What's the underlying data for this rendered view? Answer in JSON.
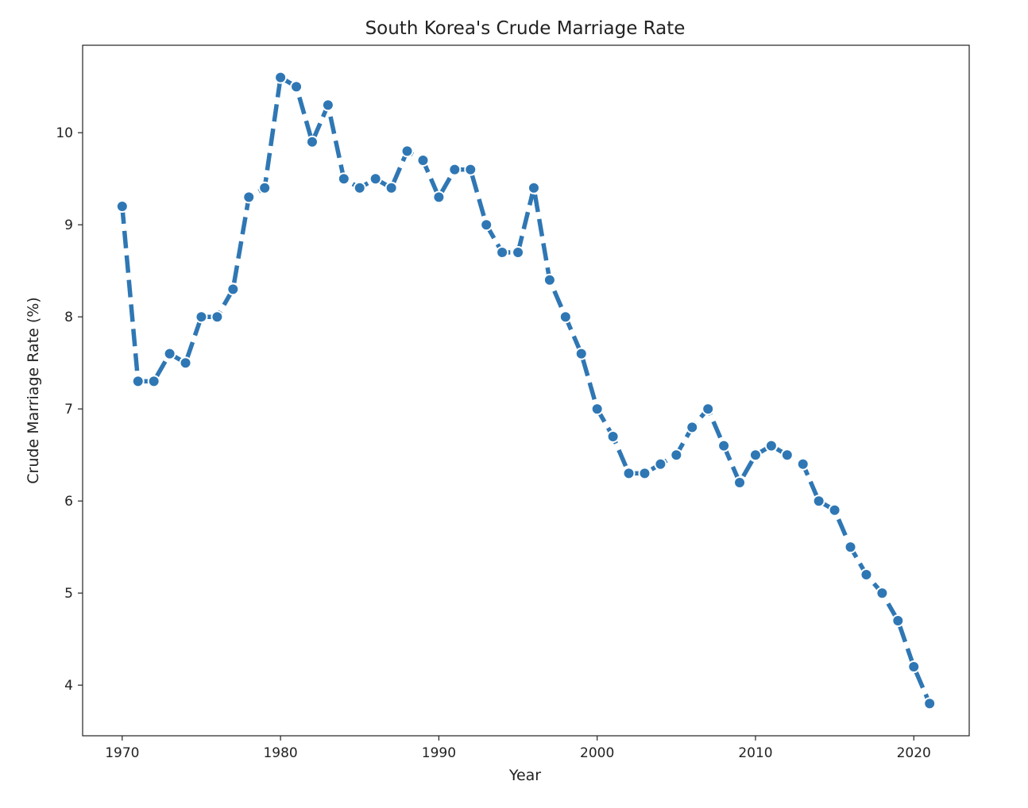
{
  "chart_data": {
    "type": "line",
    "title": "South Korea's Crude Marriage Rate",
    "xlabel": "Year",
    "ylabel": "Crude Marriage Rate (%)",
    "xlim": [
      1967.5,
      2023.5
    ],
    "ylim": [
      3.45,
      10.95
    ],
    "xticks": [
      1970,
      1980,
      1990,
      2000,
      2010,
      2020
    ],
    "yticks": [
      4,
      5,
      6,
      7,
      8,
      9,
      10
    ],
    "grid": false,
    "color": "#2f77b4",
    "series": [
      {
        "x": [
          1970,
          1971,
          1972,
          1973,
          1974,
          1975,
          1976,
          1977,
          1978,
          1979,
          1980,
          1981,
          1982,
          1983,
          1984,
          1985,
          1986,
          1987,
          1988,
          1989,
          1990,
          1991,
          1992,
          1993,
          1994,
          1995,
          1996,
          1997,
          1998,
          1999,
          2000,
          2001,
          2002,
          2003,
          2004,
          2005,
          2006,
          2007,
          2008,
          2009,
          2010,
          2011,
          2012,
          2013,
          2014,
          2015,
          2016,
          2017,
          2018,
          2019,
          2020,
          2021
        ],
        "y": [
          9.2,
          7.3,
          7.3,
          7.6,
          7.5,
          8.0,
          8.0,
          8.3,
          9.3,
          9.4,
          10.6,
          10.5,
          9.9,
          10.3,
          9.5,
          9.4,
          9.5,
          9.4,
          9.8,
          9.7,
          9.3,
          9.6,
          9.6,
          9.0,
          8.7,
          8.7,
          9.4,
          8.4,
          8.0,
          7.6,
          7.0,
          6.7,
          6.3,
          6.3,
          6.4,
          6.5,
          6.8,
          7.0,
          6.6,
          6.2,
          6.5,
          6.6,
          6.5,
          6.4,
          6.0,
          5.9,
          5.5,
          5.2,
          5.0,
          4.7,
          4.2,
          3.8
        ]
      }
    ]
  }
}
